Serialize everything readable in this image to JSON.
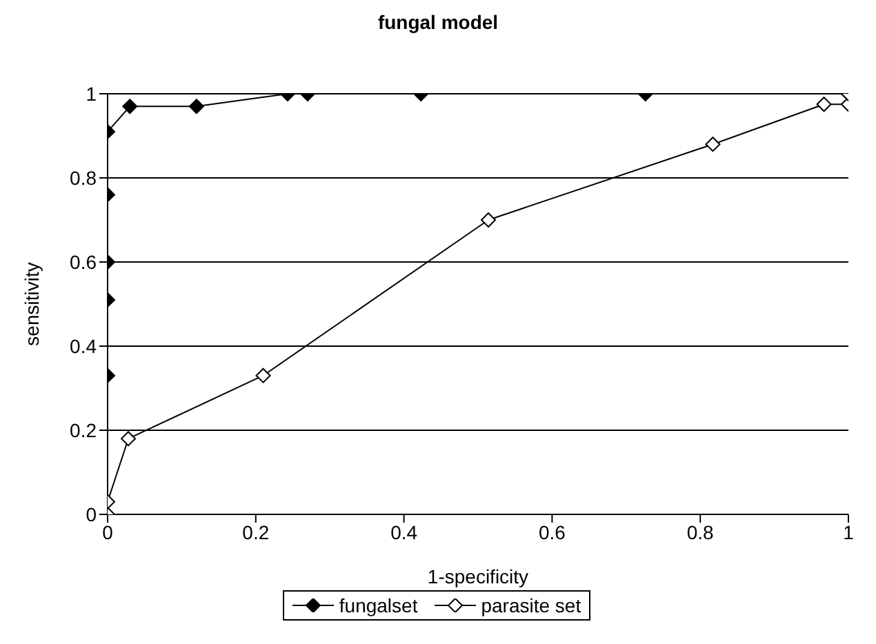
{
  "chart_data": {
    "type": "line",
    "title": "fungal model",
    "xlabel": "1-specificity",
    "ylabel": "sensitivity",
    "series": [
      {
        "name": "fungalset",
        "color": "#000000",
        "x": [
          0,
          0,
          0,
          0,
          0,
          0.03,
          0.12,
          0.243,
          0.27,
          0.423,
          0.726,
          1
        ],
        "values": [
          0.33,
          0.51,
          0.6,
          0.76,
          0.91,
          0.97,
          0.97,
          1,
          1,
          1,
          1,
          1
        ]
      },
      {
        "name": "parasite set",
        "color": "#000000",
        "x": [
          0,
          0,
          0.028,
          0.21,
          0.514,
          0.817,
          0.967,
          1,
          1
        ],
        "values": [
          0,
          0.03,
          0.18,
          0.33,
          0.7,
          0.88,
          0.975,
          0.975,
          1
        ]
      }
    ],
    "xlim": [
      0,
      1
    ],
    "xticks": [
      0,
      0.2,
      0.4,
      0.6,
      0.8,
      1
    ],
    "ylim": [
      0,
      1
    ],
    "yticks": [
      0,
      0.2,
      0.4,
      0.6,
      0.8,
      1
    ],
    "grid": "y",
    "legend": "bottom",
    "marker": "diamond",
    "line_style": "solid"
  }
}
